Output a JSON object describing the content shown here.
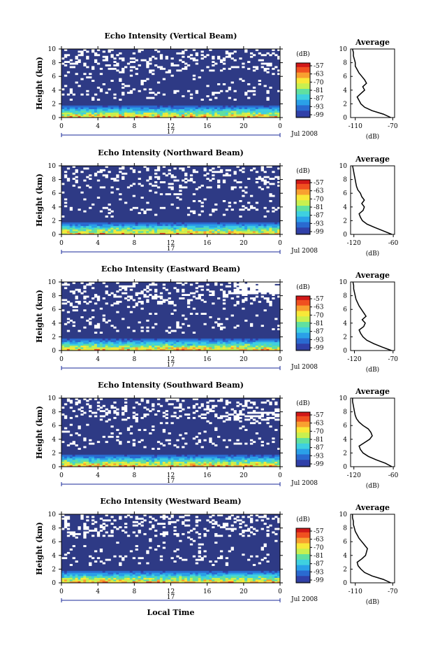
{
  "figure": {
    "xlabel": "Local Time",
    "date_label": "Jul 2008",
    "day_label": "17",
    "ylabel": "Height (km)",
    "colorbar_unit": "(dB)",
    "avg_title": "Average",
    "avg_xlabel": "(dB)"
  },
  "colors": {
    "background_echo": "#2e3a85",
    "colormap": [
      "#2e3a85",
      "#3040a8",
      "#2a6ad0",
      "#2aa0e8",
      "#3fd0e0",
      "#60e0a0",
      "#c8f050",
      "#f8e838",
      "#f8a030",
      "#f05020",
      "#d01818"
    ]
  },
  "chart_data": [
    {
      "type": "heatmap",
      "title": "Echo Intensity (Vertical Beam)",
      "x_ticks": [
        "0",
        "4",
        "8",
        "12",
        "16",
        "20",
        "0"
      ],
      "x_range": [
        0,
        24
      ],
      "y_ticks": [
        "0",
        "2",
        "4",
        "6",
        "8",
        "10"
      ],
      "y_range": [
        0,
        10
      ],
      "colorbar_ticks": [
        "-57",
        "-63",
        "-70",
        "-81",
        "-87",
        "-93",
        "-99"
      ],
      "colorbar_range": [
        -99,
        -57
      ],
      "average_profile": {
        "x_ticks": [
          "-110",
          "-70"
        ],
        "x_range": [
          -115,
          -68
        ],
        "heights": [
          0,
          0.5,
          1,
          1.5,
          2,
          2.5,
          3,
          3.5,
          4,
          4.5,
          5,
          5.5,
          6,
          6.5,
          7,
          7.5,
          8,
          8.5,
          9,
          9.5,
          10
        ],
        "values": [
          -72,
          -80,
          -92,
          -100,
          -104,
          -106,
          -108,
          -104,
          -100,
          -102,
          -98,
          -100,
          -103,
          -106,
          -108,
          -110,
          -110,
          -111,
          -112,
          -112,
          -113
        ]
      }
    },
    {
      "type": "heatmap",
      "title": "Echo Intensity (Northward Beam)",
      "x_ticks": [
        "0",
        "4",
        "8",
        "12",
        "16",
        "20",
        "0"
      ],
      "x_range": [
        0,
        24
      ],
      "y_ticks": [
        "0",
        "2",
        "4",
        "6",
        "8",
        "10"
      ],
      "y_range": [
        0,
        10
      ],
      "colorbar_ticks": [
        "-57",
        "-63",
        "-70",
        "-81",
        "-87",
        "-93",
        "-99"
      ],
      "colorbar_range": [
        -99,
        -57
      ],
      "average_profile": {
        "x_ticks": [
          "-120",
          "-60"
        ],
        "x_range": [
          -125,
          -58
        ],
        "heights": [
          0,
          0.5,
          1,
          1.5,
          2,
          2.5,
          3,
          3.5,
          4,
          4.5,
          5,
          5.5,
          6,
          6.5,
          7,
          7.5,
          8,
          8.5,
          9,
          9.5,
          10
        ],
        "values": [
          -62,
          -75,
          -88,
          -100,
          -107,
          -110,
          -112,
          -106,
          -104,
          -108,
          -104,
          -108,
          -110,
          -114,
          -116,
          -117,
          -118,
          -119,
          -120,
          -121,
          -122
        ]
      }
    },
    {
      "type": "heatmap",
      "title": "Echo Intensity (Eastward Beam)",
      "x_ticks": [
        "0",
        "4",
        "8",
        "12",
        "16",
        "20",
        "0"
      ],
      "x_range": [
        0,
        24
      ],
      "y_ticks": [
        "0",
        "2",
        "4",
        "6",
        "8",
        "10"
      ],
      "y_range": [
        0,
        10
      ],
      "colorbar_ticks": [
        "-57",
        "-63",
        "-70",
        "-81",
        "-87",
        "-93",
        "-99"
      ],
      "colorbar_range": [
        -99,
        -57
      ],
      "average_profile": {
        "x_ticks": [
          "-120",
          "-70"
        ],
        "x_range": [
          -125,
          -68
        ],
        "heights": [
          0,
          0.5,
          1,
          1.5,
          2,
          2.5,
          3,
          3.5,
          4,
          4.5,
          5,
          5.5,
          6,
          6.5,
          7,
          7.5,
          8,
          8.5,
          9,
          9.5,
          10
        ],
        "values": [
          -72,
          -84,
          -95,
          -104,
          -109,
          -112,
          -114,
          -108,
          -106,
          -110,
          -105,
          -108,
          -111,
          -114,
          -116,
          -118,
          -119,
          -120,
          -121,
          -121,
          -122
        ]
      }
    },
    {
      "type": "heatmap",
      "title": "Echo Intensity (Southward Beam)",
      "x_ticks": [
        "0",
        "4",
        "8",
        "12",
        "16",
        "20",
        "0"
      ],
      "x_range": [
        0,
        24
      ],
      "y_ticks": [
        "0",
        "2",
        "4",
        "6",
        "8",
        "10"
      ],
      "y_range": [
        0,
        10
      ],
      "colorbar_ticks": [
        "-57",
        "-63",
        "-70",
        "-81",
        "-87",
        "-93",
        "-99"
      ],
      "colorbar_range": [
        -99,
        -57
      ],
      "average_profile": {
        "x_ticks": [
          "-120",
          "-60"
        ],
        "x_range": [
          -125,
          -58
        ],
        "heights": [
          0,
          0.5,
          1,
          1.5,
          2,
          2.5,
          3,
          3.5,
          4,
          4.5,
          5,
          5.5,
          6,
          6.5,
          7,
          7.5,
          8,
          8.5,
          9,
          9.5,
          10
        ],
        "values": [
          -62,
          -72,
          -86,
          -98,
          -106,
          -110,
          -112,
          -104,
          -96,
          -92,
          -94,
          -98,
          -106,
          -112,
          -116,
          -118,
          -119,
          -120,
          -121,
          -122,
          -122
        ]
      }
    },
    {
      "type": "heatmap",
      "title": "Echo Intensity (Westward Beam)",
      "x_ticks": [
        "0",
        "4",
        "8",
        "12",
        "16",
        "20",
        "0"
      ],
      "x_range": [
        0,
        24
      ],
      "y_ticks": [
        "0",
        "2",
        "4",
        "6",
        "8",
        "10"
      ],
      "y_range": [
        0,
        10
      ],
      "colorbar_ticks": [
        "-57",
        "-63",
        "-70",
        "-81",
        "-87",
        "-93",
        "-99"
      ],
      "colorbar_range": [
        -99,
        -57
      ],
      "average_profile": {
        "x_ticks": [
          "-110",
          "-70"
        ],
        "x_range": [
          -115,
          -68
        ],
        "heights": [
          0,
          0.5,
          1,
          1.5,
          2,
          2.5,
          3,
          3.5,
          4,
          4.5,
          5,
          5.5,
          6,
          6.5,
          7,
          7.5,
          8,
          8.5,
          9,
          9.5,
          10
        ],
        "values": [
          -72,
          -80,
          -92,
          -100,
          -104,
          -107,
          -108,
          -103,
          -99,
          -98,
          -97,
          -100,
          -103,
          -106,
          -108,
          -110,
          -111,
          -112,
          -112,
          -113,
          -113
        ]
      }
    }
  ]
}
